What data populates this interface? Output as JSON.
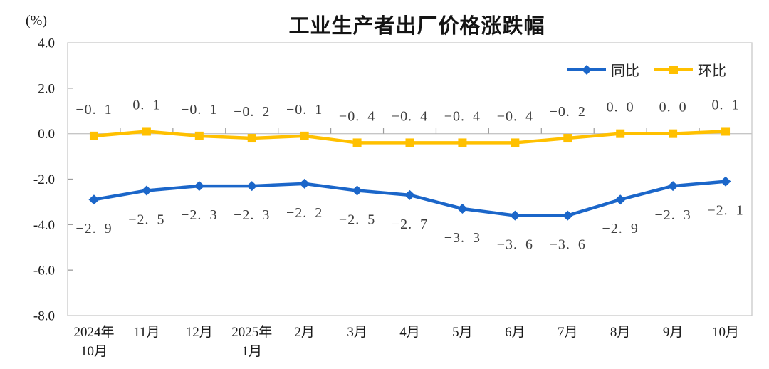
{
  "title": "工业生产者出厂价格涨跌幅",
  "unit_label": "(%)",
  "chart_data": {
    "type": "line",
    "title": "工业生产者出厂价格涨跌幅",
    "ylabel": "(%)",
    "xlabel": "",
    "ylim": [
      -8.0,
      4.0
    ],
    "ytick_step": 2.0,
    "ytick_labels": [
      "4.0",
      "2.0",
      "0.0",
      "-2.0",
      "-4.0",
      "-6.0",
      "-8.0"
    ],
    "grid": false,
    "legend_position": "top-right",
    "categories": [
      "2024年\n10月",
      "11月",
      "12月",
      "2025年\n1月",
      "2月",
      "3月",
      "4月",
      "5月",
      "6月",
      "7月",
      "8月",
      "9月",
      "10月"
    ],
    "series": [
      {
        "name": "同比",
        "key": "yoy",
        "color": "#1b66c9",
        "marker": "diamond",
        "label_side": "below",
        "values": [
          -2.9,
          -2.5,
          -2.3,
          -2.3,
          -2.2,
          -2.5,
          -2.7,
          -3.3,
          -3.6,
          -3.6,
          -2.9,
          -2.3,
          -2.1
        ],
        "labels": [
          "-2.9",
          "-2.5",
          "-2.3",
          "-2.3",
          "-2.2",
          "-2.5",
          "-2.7",
          "-3.3",
          "-3.6",
          "-3.6",
          "-2.9",
          "-2.3",
          "-2.1"
        ]
      },
      {
        "name": "环比",
        "key": "mom",
        "color": "#ffc000",
        "marker": "square",
        "label_side": "above",
        "values": [
          -0.1,
          0.1,
          -0.1,
          -0.2,
          -0.1,
          -0.4,
          -0.4,
          -0.4,
          -0.4,
          -0.2,
          0.0,
          0.0,
          0.1
        ],
        "labels": [
          "-0.1",
          "0.1",
          "-0.1",
          "-0.2",
          "-0.1",
          "-0.4",
          "-0.4",
          "-0.4",
          "-0.4",
          "-0.2",
          "0.0",
          "0.0",
          "0.1"
        ]
      }
    ]
  }
}
